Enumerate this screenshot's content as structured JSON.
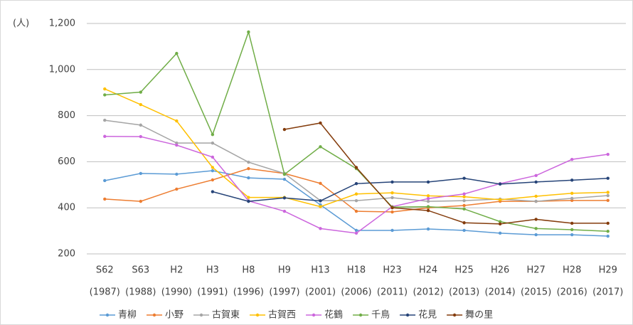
{
  "chart_data": {
    "type": "line",
    "y_label": "(人)",
    "categories": [
      "S62",
      "S63",
      "H2",
      "H3",
      "H8",
      "H9",
      "H13",
      "H18",
      "H23",
      "H24",
      "H25",
      "H26",
      "H27",
      "H28",
      "H29"
    ],
    "category_years": [
      "(1987)",
      "(1988)",
      "(1990)",
      "(1991)",
      "(1996)",
      "(1997)",
      "(2001)",
      "(2006)",
      "(2011)",
      "(2012)",
      "(2013)",
      "(2014)",
      "(2015)",
      "(2016)",
      "(2017)"
    ],
    "ylim": [
      200,
      1200
    ],
    "yticks": [
      200,
      400,
      600,
      800,
      {
        "value": 1000,
        "label": "1,000"
      },
      {
        "value": 1200,
        "label": "1,200"
      }
    ],
    "grid": true,
    "legend": "bottom",
    "series": [
      {
        "name": "青柳",
        "color": "#5b9bd5",
        "values": [
          518,
          549,
          546,
          561,
          530,
          524,
          413,
          302,
          302,
          308,
          302,
          290,
          283,
          283,
          277
        ]
      },
      {
        "name": "小野",
        "color": "#ed7d31",
        "values": [
          438,
          428,
          481,
          521,
          570,
          549,
          506,
          385,
          382,
          400,
          410,
          428,
          428,
          432,
          432
        ]
      },
      {
        "name": "古賀東",
        "color": "#a5a5a5",
        "values": [
          780,
          759,
          681,
          681,
          598,
          549,
          431,
          431,
          444,
          428,
          431,
          438,
          428,
          441,
          453
        ]
      },
      {
        "name": "古賀西",
        "color": "#ffc000",
        "values": [
          916,
          848,
          777,
          575,
          445,
          445,
          405,
          460,
          465,
          452,
          448,
          435,
          450,
          463,
          467
        ]
      },
      {
        "name": "花鶴",
        "color": "#cc66dd",
        "values": [
          710,
          709,
          672,
          620,
          430,
          385,
          310,
          290,
          405,
          440,
          460,
          505,
          540,
          610,
          632
        ]
      },
      {
        "name": "千鳥",
        "color": "#70ad47",
        "values": [
          890,
          902,
          1070,
          718,
          1163,
          545,
          665,
          570,
          403,
          405,
          395,
          340,
          310,
          305,
          298
        ]
      },
      {
        "name": "花見",
        "color": "#264478",
        "values": [
          null,
          null,
          null,
          470,
          428,
          443,
          430,
          505,
          512,
          512,
          528,
          503,
          512,
          520,
          528
        ]
      },
      {
        "name": "舞の里",
        "color": "#843c0c",
        "values": [
          null,
          null,
          null,
          null,
          null,
          740,
          768,
          575,
          400,
          388,
          335,
          330,
          350,
          333,
          333
        ]
      }
    ]
  }
}
